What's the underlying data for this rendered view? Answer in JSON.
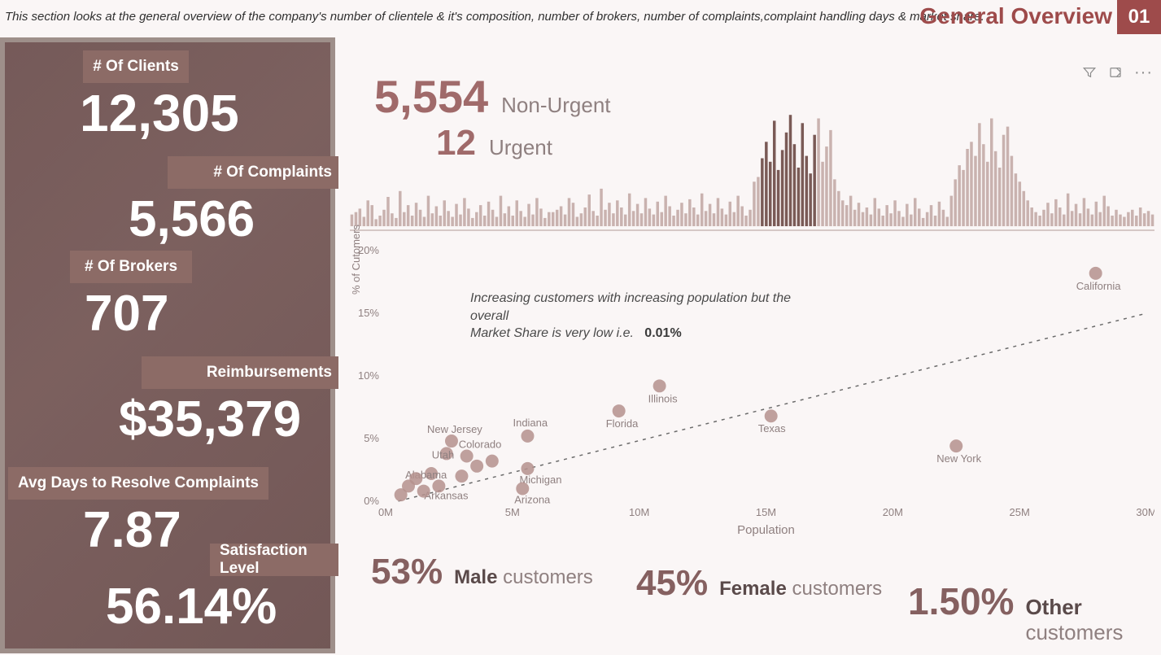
{
  "header": {
    "description": "This section looks at the general overview of the company's number of clientele  & it's composition, number of brokers, number of complaints,complaint handling days & market share.",
    "title": "General Overview",
    "page_number": "01"
  },
  "palette": {
    "accent": "#9e4b4b",
    "kpi_tile": "#8c6b66",
    "kpi_text": "#ffffff",
    "muted_text": "#8f8080",
    "value_text": "#a06a6a",
    "background": "#faf6f6",
    "divider": "#d5c8c6",
    "bar_light": "#c9b2af",
    "bar_dark": "#7a5a56",
    "scatter_point": "#b4908d",
    "trendline": "#6b6b6b"
  },
  "kpis": {
    "clients": {
      "label": "# Of Clients",
      "value": "12,305"
    },
    "complaints": {
      "label": "# Of Complaints",
      "value": "5,566"
    },
    "brokers": {
      "label": "# Of Brokers",
      "value": "707"
    },
    "reimb": {
      "label": "Reimbursements",
      "value": "$35,379"
    },
    "avg_days": {
      "label": "Avg Days  to Resolve Complaints",
      "value": "7.87"
    },
    "satisfaction": {
      "label": "Satisfaction Level",
      "value": "56.14%"
    }
  },
  "urgency": {
    "non_urgent": {
      "value": "5,554",
      "label": "Non-Urgent"
    },
    "urgent": {
      "value": "12",
      "label": "Urgent"
    }
  },
  "spark": {
    "type": "bar",
    "series_colors": {
      "light": "#c9b2af",
      "dark": "#7a5a56"
    },
    "y_max": 100,
    "values": [
      10,
      12,
      15,
      8,
      22,
      18,
      6,
      9,
      14,
      25,
      11,
      7,
      30,
      12,
      18,
      9,
      20,
      14,
      8,
      26,
      11,
      17,
      9,
      22,
      13,
      8,
      19,
      10,
      24,
      15,
      7,
      12,
      18,
      9,
      21,
      14,
      8,
      26,
      11,
      17,
      9,
      22,
      13,
      8,
      19,
      10,
      24,
      15,
      7,
      12,
      12,
      14,
      17,
      10,
      24,
      20,
      8,
      11,
      16,
      27,
      13,
      9,
      32,
      14,
      20,
      11,
      22,
      16,
      10,
      28,
      13,
      19,
      11,
      24,
      15,
      10,
      21,
      12,
      26,
      17,
      9,
      14,
      20,
      11,
      23,
      16,
      10,
      28,
      13,
      19,
      11,
      24,
      15,
      10,
      21,
      12,
      26,
      17,
      9,
      14,
      38,
      42,
      58,
      72,
      55,
      90,
      48,
      65,
      80,
      95,
      70,
      50,
      88,
      60,
      45,
      78,
      92,
      55,
      68,
      82,
      40,
      30,
      22,
      18,
      26,
      14,
      20,
      12,
      16,
      10,
      24,
      15,
      9,
      18,
      11,
      22,
      13,
      8,
      19,
      10,
      24,
      15,
      7,
      12,
      18,
      9,
      21,
      14,
      8,
      26,
      40,
      52,
      48,
      66,
      72,
      60,
      88,
      70,
      55,
      92,
      64,
      50,
      78,
      85,
      60,
      45,
      38,
      30,
      22,
      16,
      12,
      9,
      14,
      20,
      11,
      23,
      16,
      10,
      28,
      13,
      19,
      11,
      24,
      15,
      10,
      21,
      12,
      26,
      17,
      9,
      14,
      10,
      8,
      12,
      14,
      9,
      16,
      11,
      13,
      10
    ],
    "dark_indices": [
      102,
      103,
      104,
      105,
      106,
      107,
      108,
      109,
      110,
      111,
      112,
      113,
      114,
      115
    ]
  },
  "scatter": {
    "type": "scatter",
    "x_label": "Population",
    "y_label": "% of Cutomers",
    "xlim": [
      0,
      30000000
    ],
    "ylim": [
      0,
      20
    ],
    "xtick_step": 5000000,
    "xtick_labels": [
      "0M",
      "5M",
      "10M",
      "15M",
      "20M",
      "25M",
      "30M"
    ],
    "ytick_step": 5,
    "ytick_labels": [
      "0%",
      "5%",
      "10%",
      "15%",
      "20%"
    ],
    "point_color": "#b4908d",
    "point_radius": 8,
    "label_fontsize": 13,
    "label_color": "#8f8080",
    "trendline": {
      "color": "#6b6b6b",
      "dash": "4 6",
      "x1": 500000,
      "y1": 0,
      "x2": 30000000,
      "y2": 15
    },
    "annotation": {
      "text_line1": "Increasing customers with increasing population but the overall",
      "text_line2": "Market Share is very low i.e.",
      "value": "0.01%"
    },
    "points": [
      {
        "state": "California",
        "pop": 28000000,
        "pct": 18.2,
        "show_label": true,
        "label_dx": -24,
        "label_dy": 20
      },
      {
        "state": "New York",
        "pop": 22500000,
        "pct": 4.4,
        "show_label": true,
        "label_dx": -24,
        "label_dy": 20
      },
      {
        "state": "Texas",
        "pop": 15200000,
        "pct": 6.8,
        "show_label": true,
        "label_dx": -16,
        "label_dy": 20
      },
      {
        "state": "Illinois",
        "pop": 10800000,
        "pct": 9.2,
        "show_label": true,
        "label_dx": -14,
        "label_dy": 20
      },
      {
        "state": "Florida",
        "pop": 9200000,
        "pct": 7.2,
        "show_label": true,
        "label_dx": -16,
        "label_dy": 20
      },
      {
        "state": "Indiana",
        "pop": 5600000,
        "pct": 5.2,
        "show_label": true,
        "label_dx": -18,
        "label_dy": -12
      },
      {
        "state": "Michigan",
        "pop": 5600000,
        "pct": 2.6,
        "show_label": true,
        "label_dx": -10,
        "label_dy": 18
      },
      {
        "state": "Arizona",
        "pop": 5400000,
        "pct": 1.0,
        "show_label": true,
        "label_dx": -10,
        "label_dy": 18
      },
      {
        "state": "Colorado",
        "pop": 3200000,
        "pct": 3.6,
        "show_label": true,
        "label_dx": -10,
        "label_dy": -10
      },
      {
        "state": "New Jersey",
        "pop": 2600000,
        "pct": 4.8,
        "show_label": true,
        "label_dx": -30,
        "label_dy": -10
      },
      {
        "state": "Utah",
        "pop": 2400000,
        "pct": 3.8,
        "show_label": true,
        "label_dx": -18,
        "label_dy": 6
      },
      {
        "state": "Alabama",
        "pop": 1800000,
        "pct": 2.2,
        "show_label": true,
        "label_dx": -32,
        "label_dy": 6
      },
      {
        "state": "Arkansas",
        "pop": 2100000,
        "pct": 1.2,
        "show_label": true,
        "label_dx": -18,
        "label_dy": 16
      },
      {
        "state": "",
        "pop": 1200000,
        "pct": 1.8,
        "show_label": false
      },
      {
        "state": "",
        "pop": 900000,
        "pct": 1.2,
        "show_label": false
      },
      {
        "state": "",
        "pop": 1500000,
        "pct": 0.8,
        "show_label": false
      },
      {
        "state": "",
        "pop": 600000,
        "pct": 0.5,
        "show_label": false
      },
      {
        "state": "",
        "pop": 3000000,
        "pct": 2.0,
        "show_label": false
      },
      {
        "state": "",
        "pop": 3600000,
        "pct": 2.8,
        "show_label": false
      },
      {
        "state": "",
        "pop": 4200000,
        "pct": 3.2,
        "show_label": false
      }
    ]
  },
  "demographics": {
    "male": {
      "pct": "53%",
      "bold": "Male",
      "rest": " customers"
    },
    "female": {
      "pct": "45%",
      "bold": "Female",
      "rest": " customers"
    },
    "other": {
      "pct": "1.50%",
      "bold": "Other",
      "rest": " customers"
    }
  },
  "toolbar_icons": [
    "filter-icon",
    "focus-mode-icon",
    "more-options-icon"
  ]
}
